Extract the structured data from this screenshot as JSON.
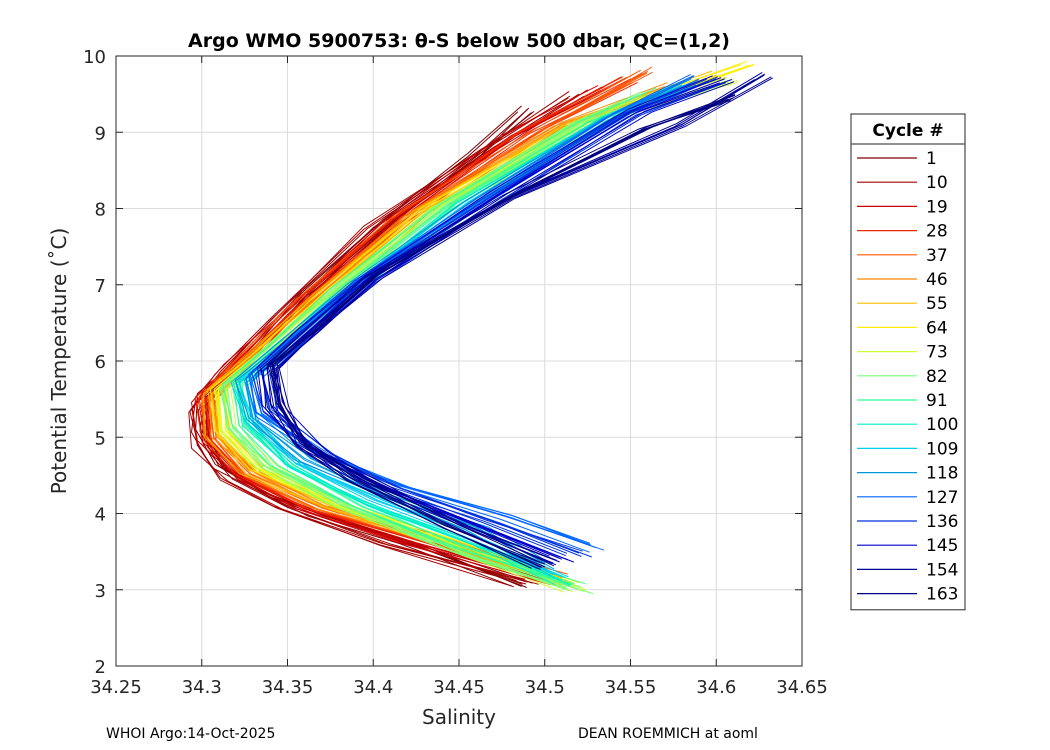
{
  "chart_data": {
    "type": "line",
    "title": "Argo WMO 5900753: θ-S below 500 dbar,  QC=(1,2)",
    "xlabel": "Salinity",
    "ylabel": "Potential Temperature (˚C)",
    "xlim": [
      34.25,
      34.65
    ],
    "ylim": [
      2,
      10
    ],
    "xticks": [
      "34.25",
      "34.3",
      "34.35",
      "34.4",
      "34.45",
      "34.5",
      "34.55",
      "34.6",
      "34.65"
    ],
    "yticks": [
      "2",
      "3",
      "4",
      "5",
      "6",
      "7",
      "8",
      "9",
      "10"
    ],
    "grid": true,
    "legend": {
      "title": "Cycle #",
      "placement": "right",
      "entries": [
        {
          "label": "1",
          "color": "#800000"
        },
        {
          "label": "10",
          "color": "#a80000"
        },
        {
          "label": "19",
          "color": "#d00000"
        },
        {
          "label": "28",
          "color": "#ee2a00"
        },
        {
          "label": "37",
          "color": "#ff5500"
        },
        {
          "label": "46",
          "color": "#ff8800"
        },
        {
          "label": "55",
          "color": "#ffbb00"
        },
        {
          "label": "64",
          "color": "#ffee00"
        },
        {
          "label": "73",
          "color": "#ccff33"
        },
        {
          "label": "82",
          "color": "#77ff77"
        },
        {
          "label": "91",
          "color": "#33ff99"
        },
        {
          "label": "100",
          "color": "#00eecc"
        },
        {
          "label": "109",
          "color": "#00ccee"
        },
        {
          "label": "118",
          "color": "#0099dd"
        },
        {
          "label": "127",
          "color": "#0066ff"
        },
        {
          "label": "136",
          "color": "#0033dd"
        },
        {
          "label": "145",
          "color": "#0000cc"
        },
        {
          "label": "154",
          "color": "#000099"
        },
        {
          "label": "163",
          "color": "#000080"
        }
      ]
    },
    "series": [
      {
        "name": "1",
        "color": "#800000",
        "points": [
          [
            34.487,
            3.07
          ],
          [
            34.42,
            3.62
          ],
          [
            34.37,
            3.98
          ],
          [
            34.34,
            4.25
          ],
          [
            34.31,
            4.62
          ],
          [
            34.299,
            5.08
          ],
          [
            34.302,
            5.55
          ],
          [
            34.33,
            6.08
          ],
          [
            34.362,
            6.9
          ],
          [
            34.41,
            7.82
          ],
          [
            34.46,
            8.7
          ],
          [
            34.49,
            9.3
          ]
        ]
      },
      {
        "name": "10",
        "color": "#a80000",
        "points": [
          [
            34.49,
            3.1
          ],
          [
            34.41,
            3.6
          ],
          [
            34.35,
            4.08
          ],
          [
            34.318,
            4.45
          ],
          [
            34.301,
            4.88
          ],
          [
            34.298,
            5.35
          ],
          [
            34.315,
            5.85
          ],
          [
            34.345,
            6.55
          ],
          [
            34.4,
            7.75
          ],
          [
            34.47,
            8.8
          ],
          [
            34.52,
            9.5
          ]
        ]
      },
      {
        "name": "19",
        "color": "#d00000",
        "points": [
          [
            34.5,
            3.12
          ],
          [
            34.42,
            3.62
          ],
          [
            34.36,
            4.06
          ],
          [
            34.322,
            4.48
          ],
          [
            34.303,
            4.95
          ],
          [
            34.3,
            5.45
          ],
          [
            34.32,
            5.95
          ],
          [
            34.35,
            6.6
          ],
          [
            34.41,
            7.8
          ],
          [
            34.48,
            8.95
          ],
          [
            34.535,
            9.6
          ]
        ]
      },
      {
        "name": "28",
        "color": "#ee2a00",
        "points": [
          [
            34.505,
            3.14
          ],
          [
            34.43,
            3.64
          ],
          [
            34.365,
            4.07
          ],
          [
            34.325,
            4.5
          ],
          [
            34.305,
            4.98
          ],
          [
            34.302,
            5.5
          ],
          [
            34.322,
            6.0
          ],
          [
            34.355,
            6.7
          ],
          [
            34.415,
            7.85
          ],
          [
            34.49,
            9.0
          ],
          [
            34.55,
            9.7
          ]
        ]
      },
      {
        "name": "37",
        "color": "#ff5500",
        "points": [
          [
            34.51,
            3.15
          ],
          [
            34.435,
            3.66
          ],
          [
            34.37,
            4.08
          ],
          [
            34.328,
            4.52
          ],
          [
            34.307,
            5.0
          ],
          [
            34.304,
            5.52
          ],
          [
            34.326,
            6.05
          ],
          [
            34.36,
            6.75
          ],
          [
            34.42,
            7.9
          ],
          [
            34.5,
            9.05
          ],
          [
            34.56,
            9.8
          ]
        ]
      },
      {
        "name": "46",
        "color": "#ff8800",
        "points": [
          [
            34.51,
            3.16
          ],
          [
            34.44,
            3.68
          ],
          [
            34.372,
            4.1
          ],
          [
            34.33,
            4.55
          ],
          [
            34.308,
            5.02
          ],
          [
            34.306,
            5.55
          ],
          [
            34.33,
            6.08
          ],
          [
            34.365,
            6.8
          ],
          [
            34.425,
            7.95
          ],
          [
            34.51,
            9.1
          ],
          [
            34.57,
            9.6
          ]
        ]
      },
      {
        "name": "55",
        "color": "#ffbb00",
        "points": [
          [
            34.512,
            3.12
          ],
          [
            34.44,
            3.65
          ],
          [
            34.375,
            4.1
          ],
          [
            34.332,
            4.55
          ],
          [
            34.31,
            5.05
          ],
          [
            34.308,
            5.6
          ],
          [
            34.335,
            6.12
          ],
          [
            34.37,
            6.85
          ],
          [
            34.43,
            7.98
          ],
          [
            34.52,
            9.15
          ],
          [
            34.6,
            9.75
          ]
        ]
      },
      {
        "name": "64",
        "color": "#ffee00",
        "points": [
          [
            34.515,
            3.08
          ],
          [
            34.445,
            3.62
          ],
          [
            34.378,
            4.12
          ],
          [
            34.335,
            4.58
          ],
          [
            34.312,
            5.08
          ],
          [
            34.31,
            5.62
          ],
          [
            34.338,
            6.15
          ],
          [
            34.375,
            6.88
          ],
          [
            34.435,
            8.0
          ],
          [
            34.53,
            9.2
          ],
          [
            34.62,
            9.88
          ]
        ]
      },
      {
        "name": "73",
        "color": "#ccff33",
        "points": [
          [
            34.518,
            3.02
          ],
          [
            34.45,
            3.55
          ],
          [
            34.38,
            4.12
          ],
          [
            34.338,
            4.6
          ],
          [
            34.315,
            5.1
          ],
          [
            34.313,
            5.62
          ],
          [
            34.34,
            6.15
          ],
          [
            34.378,
            6.9
          ],
          [
            34.44,
            8.0
          ],
          [
            34.53,
            9.15
          ],
          [
            34.61,
            9.7
          ]
        ]
      },
      {
        "name": "82",
        "color": "#77ff77",
        "points": [
          [
            34.52,
            3.0
          ],
          [
            34.45,
            3.5
          ],
          [
            34.385,
            4.1
          ],
          [
            34.34,
            4.62
          ],
          [
            34.318,
            5.12
          ],
          [
            34.315,
            5.65
          ],
          [
            34.342,
            6.18
          ],
          [
            34.38,
            6.92
          ],
          [
            34.44,
            8.0
          ],
          [
            34.52,
            9.1
          ],
          [
            34.56,
            9.5
          ]
        ]
      },
      {
        "name": "91",
        "color": "#33ff99",
        "points": [
          [
            34.515,
            3.05
          ],
          [
            34.45,
            3.55
          ],
          [
            34.39,
            4.08
          ],
          [
            34.345,
            4.62
          ],
          [
            34.322,
            5.15
          ],
          [
            34.318,
            5.68
          ],
          [
            34.345,
            6.2
          ],
          [
            34.382,
            6.95
          ],
          [
            34.445,
            8.05
          ],
          [
            34.525,
            9.12
          ],
          [
            34.57,
            9.55
          ]
        ]
      },
      {
        "name": "100",
        "color": "#00eecc",
        "points": [
          [
            34.51,
            3.12
          ],
          [
            34.455,
            3.62
          ],
          [
            34.395,
            4.12
          ],
          [
            34.35,
            4.62
          ],
          [
            34.325,
            5.18
          ],
          [
            34.32,
            5.7
          ],
          [
            34.348,
            6.22
          ],
          [
            34.385,
            6.95
          ],
          [
            34.45,
            8.05
          ],
          [
            34.53,
            9.15
          ],
          [
            34.575,
            9.6
          ]
        ]
      },
      {
        "name": "109",
        "color": "#00ccee",
        "points": [
          [
            34.505,
            3.2
          ],
          [
            34.46,
            3.7
          ],
          [
            34.4,
            4.18
          ],
          [
            34.355,
            4.65
          ],
          [
            34.328,
            5.2
          ],
          [
            34.322,
            5.72
          ],
          [
            34.35,
            6.25
          ],
          [
            34.388,
            6.98
          ],
          [
            34.455,
            8.08
          ],
          [
            34.535,
            9.18
          ],
          [
            34.58,
            9.62
          ]
        ]
      },
      {
        "name": "118",
        "color": "#0099dd",
        "points": [
          [
            34.5,
            3.3
          ],
          [
            34.46,
            3.8
          ],
          [
            34.405,
            4.25
          ],
          [
            34.36,
            4.7
          ],
          [
            34.33,
            5.25
          ],
          [
            34.325,
            5.75
          ],
          [
            34.352,
            6.28
          ],
          [
            34.39,
            7.0
          ],
          [
            34.46,
            8.1
          ],
          [
            34.54,
            9.2
          ],
          [
            34.585,
            9.65
          ]
        ]
      },
      {
        "name": "127",
        "color": "#0066ff",
        "points": [
          [
            34.53,
            3.55
          ],
          [
            34.48,
            3.95
          ],
          [
            34.42,
            4.35
          ],
          [
            34.37,
            4.75
          ],
          [
            34.335,
            5.3
          ],
          [
            34.33,
            5.8
          ],
          [
            34.356,
            6.3
          ],
          [
            34.392,
            7.02
          ],
          [
            34.465,
            8.12
          ],
          [
            34.545,
            9.22
          ],
          [
            34.59,
            9.7
          ]
        ]
      },
      {
        "name": "136",
        "color": "#0033dd",
        "points": [
          [
            34.52,
            3.48
          ],
          [
            34.47,
            3.9
          ],
          [
            34.41,
            4.35
          ],
          [
            34.37,
            4.8
          ],
          [
            34.34,
            5.35
          ],
          [
            34.335,
            5.85
          ],
          [
            34.36,
            6.35
          ],
          [
            34.395,
            7.05
          ],
          [
            34.47,
            8.15
          ],
          [
            34.55,
            9.25
          ],
          [
            34.6,
            9.7
          ]
        ]
      },
      {
        "name": "145",
        "color": "#0000cc",
        "points": [
          [
            34.51,
            3.4
          ],
          [
            34.46,
            3.85
          ],
          [
            34.4,
            4.4
          ],
          [
            34.365,
            4.85
          ],
          [
            34.342,
            5.4
          ],
          [
            34.338,
            5.9
          ],
          [
            34.362,
            6.38
          ],
          [
            34.398,
            7.08
          ],
          [
            34.475,
            8.2
          ],
          [
            34.555,
            9.28
          ],
          [
            34.605,
            9.7
          ]
        ]
      },
      {
        "name": "154",
        "color": "#000099",
        "points": [
          [
            34.505,
            3.35
          ],
          [
            34.45,
            3.85
          ],
          [
            34.395,
            4.45
          ],
          [
            34.36,
            4.9
          ],
          [
            34.345,
            5.42
          ],
          [
            34.34,
            5.92
          ],
          [
            34.365,
            6.4
          ],
          [
            34.4,
            7.1
          ],
          [
            34.48,
            8.15
          ],
          [
            34.58,
            9.1
          ],
          [
            34.628,
            9.75
          ]
        ]
      },
      {
        "name": "163",
        "color": "#000080",
        "points": [
          [
            34.5,
            3.3
          ],
          [
            34.445,
            3.82
          ],
          [
            34.39,
            4.45
          ],
          [
            34.358,
            4.95
          ],
          [
            34.345,
            5.45
          ],
          [
            34.342,
            5.95
          ],
          [
            34.367,
            6.42
          ],
          [
            34.402,
            7.12
          ],
          [
            34.482,
            8.18
          ],
          [
            34.56,
            9.05
          ],
          [
            34.61,
            9.45
          ]
        ]
      }
    ]
  },
  "footer": {
    "left": "WHOI Argo:14-Oct-2025",
    "right": "DEAN ROEMMICH at aoml"
  }
}
